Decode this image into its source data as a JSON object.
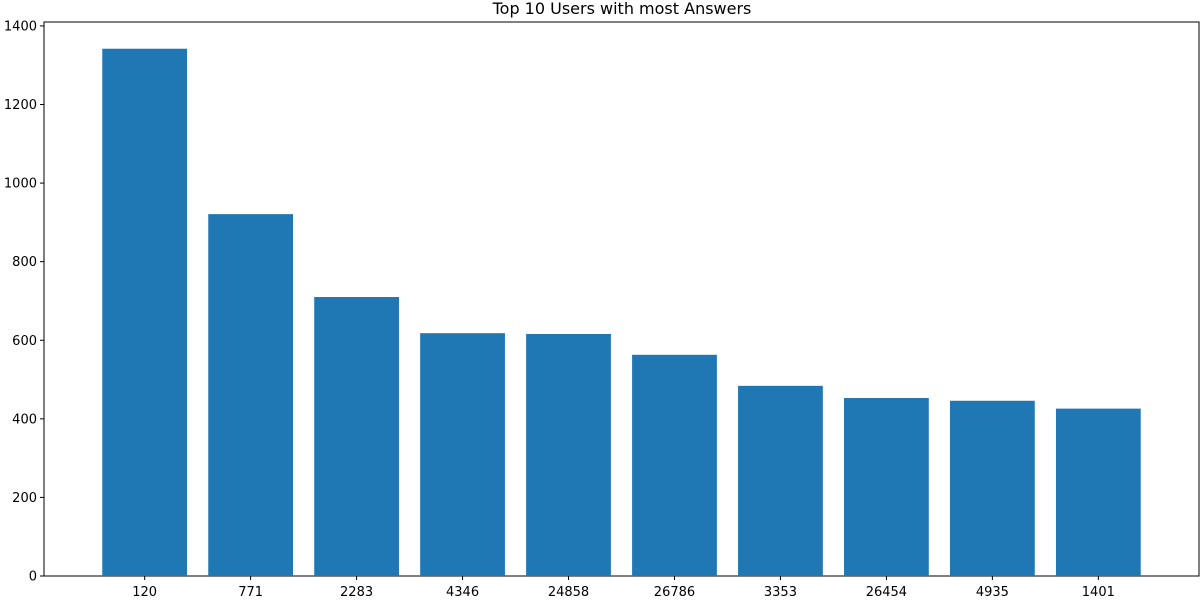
{
  "chart_data": {
    "type": "bar",
    "title": "Top 10 Users with most Answers",
    "xlabel": "",
    "ylabel": "",
    "categories": [
      "120",
      "771",
      "2283",
      "4346",
      "24858",
      "26786",
      "3353",
      "26454",
      "4935",
      "1401"
    ],
    "values": [
      1342,
      921,
      710,
      618,
      616,
      563,
      484,
      453,
      446,
      426
    ],
    "ylim": [
      0,
      1410
    ],
    "yticks": [
      0,
      200,
      400,
      600,
      800,
      1000,
      1200,
      1400
    ],
    "grid": false,
    "legend": "none",
    "bar_color": "#1f77b4"
  }
}
